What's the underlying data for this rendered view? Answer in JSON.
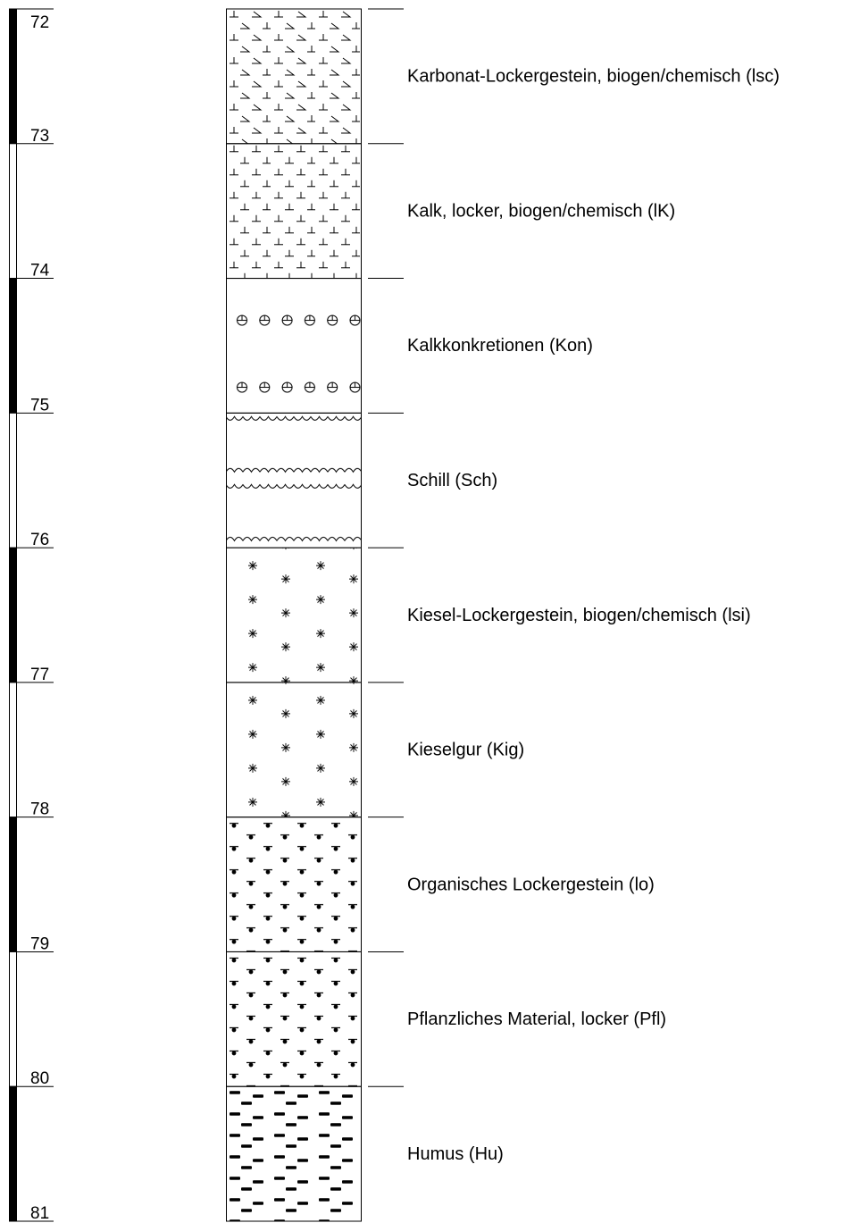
{
  "scale": {
    "ticks": [
      72,
      73,
      74,
      75,
      76,
      77,
      78,
      79,
      80,
      81
    ]
  },
  "layers": [
    {
      "label": "Karbonat-Lockergestein, biogen/chemisch (lsc)",
      "top": 72,
      "bottom": 73
    },
    {
      "label": "Kalk, locker, biogen/chemisch (lK)",
      "top": 73,
      "bottom": 74
    },
    {
      "label": "Kalkkonkretionen (Kon)",
      "top": 74,
      "bottom": 75
    },
    {
      "label": "Schill (Sch)",
      "top": 75,
      "bottom": 76
    },
    {
      "label": "Kiesel-Lockergestein, biogen/chemisch (lsi)",
      "top": 76,
      "bottom": 77
    },
    {
      "label": "Kieselgur (Kig)",
      "top": 77,
      "bottom": 78
    },
    {
      "label": "Organisches Lockergestein (lo)",
      "top": 78,
      "bottom": 79
    },
    {
      "label": "Pflanzliches Material, locker (Pfl)",
      "top": 79,
      "bottom": 80
    },
    {
      "label": "Humus (Hu)",
      "top": 80,
      "bottom": 81
    }
  ]
}
